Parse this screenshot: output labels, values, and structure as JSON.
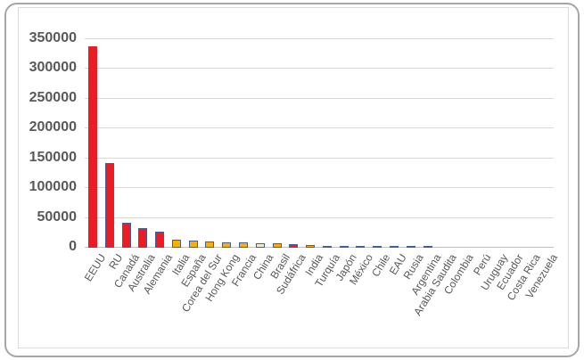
{
  "chart_data": {
    "type": "bar",
    "title": "",
    "xlabel": "",
    "ylabel": "",
    "legend": false,
    "grid": true,
    "ylim": [
      0,
      350000
    ],
    "ytick_step": 50000,
    "yticks": [
      {
        "label": "0",
        "value": 0
      },
      {
        "label": "50000",
        "value": 50000
      },
      {
        "label": "100000",
        "value": 100000
      },
      {
        "label": "150000",
        "value": 150000
      },
      {
        "label": "200000",
        "value": 200000
      },
      {
        "label": "250000",
        "value": 250000
      },
      {
        "label": "300000",
        "value": 300000
      },
      {
        "label": "350000",
        "value": 350000
      }
    ],
    "categories": [
      "EEUU",
      "RU",
      "Canadá",
      "Australia",
      "Alemania",
      "Italia",
      "España",
      "Corea del Sur",
      "Hong Kong",
      "Francia",
      "China",
      "Brasil",
      "Sudáfrica",
      "India",
      "Turquía",
      "Japón",
      "México",
      "Chile",
      "EAU",
      "Rusia",
      "Argentina",
      "Arabia Saudita",
      "Colombia",
      "Perú",
      "Uruguay",
      "Ecuador",
      "Costa Rica",
      "Venezuela"
    ],
    "values": [
      337000,
      141000,
      40000,
      31000,
      26000,
      12500,
      11000,
      9000,
      7500,
      7500,
      6500,
      6000,
      4000,
      3200,
      1800,
      1600,
      1500,
      1500,
      1500,
      1500,
      2000,
      400,
      350,
      300,
      250,
      200,
      150,
      500
    ],
    "bar_fill_keys": [
      "red",
      "red",
      "red",
      "red",
      "red",
      "gold",
      "gold",
      "gold",
      "gold",
      "gold",
      "cream",
      "gold",
      "red",
      "gold",
      "gold",
      "gold",
      "gold",
      "gold",
      "gold",
      "gold",
      "gold",
      "gold",
      "gold",
      "gold",
      "gold",
      "gold",
      "gold",
      "gold"
    ],
    "bar_border_keys": [
      "red",
      "blue",
      "blue",
      "blue",
      "blue",
      "blue",
      "blue",
      "blue",
      "blue",
      "blue",
      "blue",
      "blue",
      "blue",
      "blue",
      "blue",
      "blue",
      "blue",
      "blue",
      "blue",
      "blue",
      "blue",
      "blue",
      "blue",
      "blue",
      "blue",
      "blue",
      "blue",
      "blue"
    ],
    "colors": {
      "red": "#ec1c24",
      "gold": "#f9b000",
      "cream": "#f2e9ce",
      "blue": "#3f5f9c",
      "axis_text": "#595959",
      "gridline": "#d9d9d9",
      "axis_line": "#bfbfbf",
      "outer_border": "#a6a6a6",
      "inner_border": "#dcdcdc"
    },
    "legend_position": "none"
  }
}
